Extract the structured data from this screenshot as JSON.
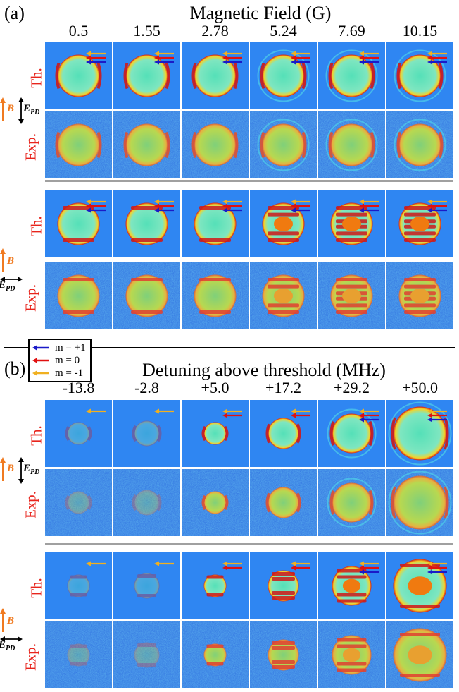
{
  "panel_a": {
    "tag": "(a)",
    "axis_title": "Magnetic Field (G)",
    "columns": [
      "0.5",
      "1.55",
      "2.78",
      "5.24",
      "7.69",
      "10.15"
    ]
  },
  "panel_b": {
    "tag": "(b)",
    "axis_title": "Detuning above threshold (MHz)",
    "columns": [
      "-13.8",
      "-2.8",
      "+5.0",
      "+17.2",
      "+29.2",
      "+50.0"
    ]
  },
  "row_labels": {
    "theory": "Th.",
    "experiment": "Exp."
  },
  "orientation_labels": {
    "b": "B",
    "e": "E",
    "e_sub": "PD"
  },
  "legend": [
    {
      "label": "m = +1",
      "color": "#1a1ac8"
    },
    {
      "label": "m = 0",
      "color": "#e01010"
    },
    {
      "label": "m = -1",
      "color": "#f0b020"
    }
  ],
  "colors": {
    "background": "#2a7ef0",
    "theory_bg": "#2f86f2",
    "ring_hot": "#d01818",
    "ring_warm": "#f3d42a",
    "ring_mid": "#4fe0d0",
    "orange": "#f07a20"
  }
}
